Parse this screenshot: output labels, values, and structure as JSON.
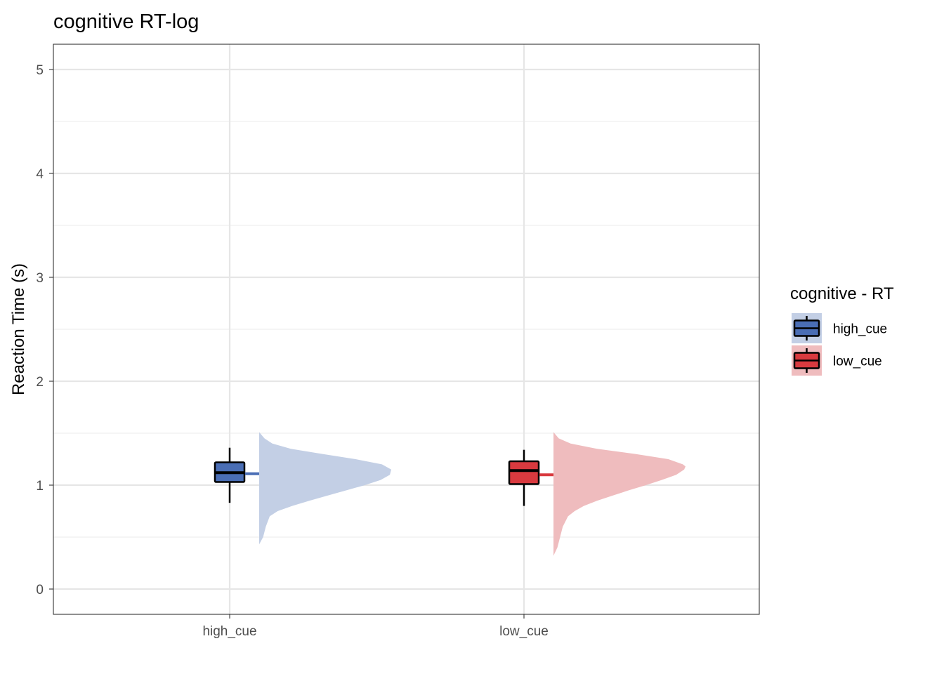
{
  "chart_data": {
    "type": "raincloud",
    "title": "cognitive RT-log",
    "xlabel": "",
    "ylabel": "Reaction Time (s)",
    "ylim": [
      -0.25,
      5.25
    ],
    "yticks": [
      0,
      1,
      2,
      3,
      4,
      5
    ],
    "grid": true,
    "categories": [
      "high_cue",
      "low_cue"
    ],
    "legend": {
      "title": "cognitive  - RT",
      "position": "right",
      "entries": [
        "high_cue",
        "low_cue"
      ]
    },
    "series": [
      {
        "name": "high_cue",
        "color": "#4a6eb5",
        "density_color": "#c3cfe5",
        "box": {
          "min": 0.83,
          "q1": 1.03,
          "median": 1.12,
          "q3": 1.22,
          "max": 1.36
        },
        "mean": 1.11,
        "density": {
          "y": [
            0.43,
            0.5,
            0.6,
            0.7,
            0.75,
            0.8,
            0.85,
            0.9,
            0.95,
            1.0,
            1.05,
            1.1,
            1.15,
            1.2,
            1.25,
            1.3,
            1.35,
            1.4,
            1.45,
            1.51
          ],
          "d": [
            0.0,
            0.03,
            0.05,
            0.08,
            0.14,
            0.25,
            0.38,
            0.52,
            0.66,
            0.8,
            0.92,
            0.99,
            1.0,
            0.93,
            0.73,
            0.48,
            0.24,
            0.1,
            0.04,
            0.0
          ]
        }
      },
      {
        "name": "low_cue",
        "color": "#d93a3f",
        "density_color": "#efbcbe",
        "box": {
          "min": 0.8,
          "q1": 1.01,
          "median": 1.14,
          "q3": 1.23,
          "max": 1.34
        },
        "mean": 1.1,
        "density": {
          "y": [
            0.32,
            0.4,
            0.5,
            0.6,
            0.7,
            0.75,
            0.8,
            0.85,
            0.9,
            0.95,
            1.0,
            1.05,
            1.1,
            1.15,
            1.18,
            1.2,
            1.25,
            1.3,
            1.35,
            1.4,
            1.45,
            1.51
          ],
          "d": [
            0.0,
            0.03,
            0.05,
            0.07,
            0.11,
            0.16,
            0.23,
            0.33,
            0.45,
            0.57,
            0.7,
            0.82,
            0.93,
            0.99,
            1.0,
            0.98,
            0.87,
            0.62,
            0.33,
            0.13,
            0.04,
            0.0
          ]
        }
      }
    ]
  }
}
